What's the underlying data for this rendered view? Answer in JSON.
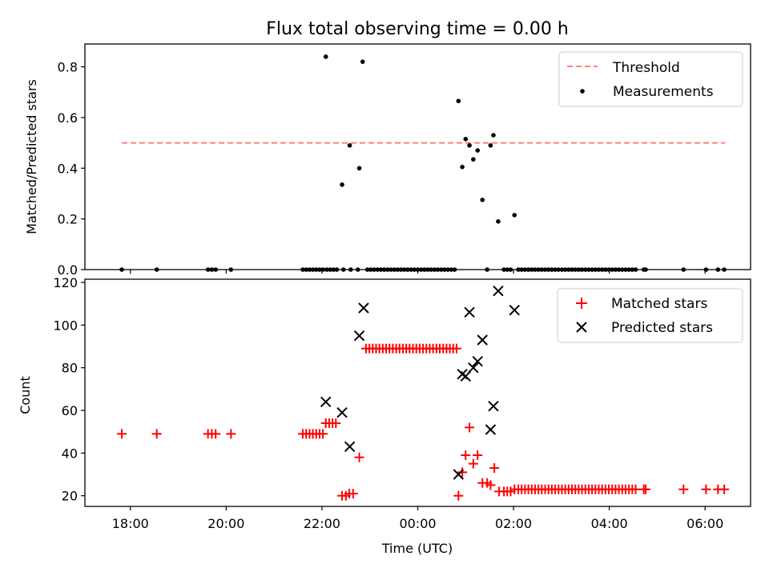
{
  "chart_data": {
    "type": "scatter",
    "title": "Flux total observing time = 0.00 h",
    "xlabel": "Time (UTC)",
    "x_unit": "hours UTC (values >= 24 are next day)",
    "xlim": [
      17.05,
      30.95
    ],
    "xticks": [
      {
        "value": 18,
        "label": "18:00"
      },
      {
        "value": 20,
        "label": "20:00"
      },
      {
        "value": 22,
        "label": "22:00"
      },
      {
        "value": 24,
        "label": "00:00"
      },
      {
        "value": 26,
        "label": "02:00"
      },
      {
        "value": 28,
        "label": "04:00"
      },
      {
        "value": 30,
        "label": "06:00"
      }
    ],
    "panels": [
      {
        "ylabel": "Matched/Predicted stars",
        "ylim": [
          0,
          0.89
        ],
        "yticks": [
          {
            "value": 0.0,
            "label": "0.0"
          },
          {
            "value": 0.2,
            "label": "0.2"
          },
          {
            "value": 0.4,
            "label": "0.4"
          },
          {
            "value": 0.6,
            "label": "0.6"
          },
          {
            "value": 0.8,
            "label": "0.8"
          }
        ],
        "legend": "top-right",
        "threshold": {
          "name": "Threshold",
          "value": 0.5,
          "x_range": [
            17.82,
            30.42
          ],
          "color": "#ff7f7f"
        },
        "series": [
          {
            "name": "Measurements",
            "marker": "dot",
            "color": "#000000",
            "points": [
              [
                17.82,
                0
              ],
              [
                18.55,
                0
              ],
              [
                19.62,
                0
              ],
              [
                19.7,
                0
              ],
              [
                19.78,
                0
              ],
              [
                20.1,
                0
              ],
              [
                21.6,
                0
              ],
              [
                21.67,
                0
              ],
              [
                21.74,
                0
              ],
              [
                21.81,
                0
              ],
              [
                21.88,
                0
              ],
              [
                21.95,
                0
              ],
              [
                22.02,
                0
              ],
              [
                22.1,
                0
              ],
              [
                22.17,
                0
              ],
              [
                22.24,
                0
              ],
              [
                22.31,
                0
              ],
              [
                22.45,
                0
              ],
              [
                22.6,
                0
              ],
              [
                22.75,
                0
              ],
              [
                22.08,
                0.84
              ],
              [
                22.42,
                0.335
              ],
              [
                22.58,
                0.49
              ],
              [
                22.78,
                0.4
              ],
              [
                22.85,
                0.82
              ],
              [
                22.95,
                0
              ],
              [
                23.02,
                0
              ],
              [
                23.09,
                0
              ],
              [
                23.16,
                0
              ],
              [
                23.23,
                0
              ],
              [
                23.3,
                0
              ],
              [
                23.37,
                0
              ],
              [
                23.44,
                0
              ],
              [
                23.51,
                0
              ],
              [
                23.58,
                0
              ],
              [
                23.65,
                0
              ],
              [
                23.72,
                0
              ],
              [
                23.79,
                0
              ],
              [
                23.86,
                0
              ],
              [
                23.93,
                0
              ],
              [
                24.0,
                0
              ],
              [
                24.07,
                0
              ],
              [
                24.14,
                0
              ],
              [
                24.21,
                0
              ],
              [
                24.28,
                0
              ],
              [
                24.35,
                0
              ],
              [
                24.42,
                0
              ],
              [
                24.49,
                0
              ],
              [
                24.56,
                0
              ],
              [
                24.63,
                0
              ],
              [
                24.7,
                0
              ],
              [
                24.77,
                0
              ],
              [
                24.85,
                0.665
              ],
              [
                24.93,
                0.405
              ],
              [
                25.0,
                0.515
              ],
              [
                25.08,
                0.49
              ],
              [
                25.16,
                0.435
              ],
              [
                25.25,
                0.47
              ],
              [
                25.35,
                0.275
              ],
              [
                25.52,
                0.49
              ],
              [
                25.58,
                0.53
              ],
              [
                25.68,
                0.19
              ],
              [
                26.02,
                0.215
              ],
              [
                25.45,
                0
              ],
              [
                25.8,
                0
              ],
              [
                25.87,
                0
              ],
              [
                25.94,
                0
              ],
              [
                26.1,
                0
              ],
              [
                26.17,
                0
              ],
              [
                26.24,
                0
              ],
              [
                26.31,
                0
              ],
              [
                26.38,
                0
              ],
              [
                26.45,
                0
              ],
              [
                26.52,
                0
              ],
              [
                26.59,
                0
              ],
              [
                26.66,
                0
              ],
              [
                26.73,
                0
              ],
              [
                26.8,
                0
              ],
              [
                26.87,
                0
              ],
              [
                26.94,
                0
              ],
              [
                27.01,
                0
              ],
              [
                27.08,
                0
              ],
              [
                27.15,
                0
              ],
              [
                27.22,
                0
              ],
              [
                27.29,
                0
              ],
              [
                27.36,
                0
              ],
              [
                27.43,
                0
              ],
              [
                27.5,
                0
              ],
              [
                27.57,
                0
              ],
              [
                27.64,
                0
              ],
              [
                27.71,
                0
              ],
              [
                27.78,
                0
              ],
              [
                27.85,
                0
              ],
              [
                27.92,
                0
              ],
              [
                27.99,
                0
              ],
              [
                28.06,
                0
              ],
              [
                28.13,
                0
              ],
              [
                28.2,
                0
              ],
              [
                28.27,
                0
              ],
              [
                28.34,
                0
              ],
              [
                28.41,
                0
              ],
              [
                28.48,
                0
              ],
              [
                28.55,
                0
              ],
              [
                28.72,
                0
              ],
              [
                28.76,
                0
              ],
              [
                29.55,
                0
              ],
              [
                30.02,
                0
              ],
              [
                30.27,
                0
              ],
              [
                30.4,
                0
              ]
            ]
          }
        ]
      },
      {
        "ylabel": "Count",
        "ylim": [
          15,
          121.5
        ],
        "yticks": [
          {
            "value": 20,
            "label": "20"
          },
          {
            "value": 40,
            "label": "40"
          },
          {
            "value": 60,
            "label": "60"
          },
          {
            "value": 80,
            "label": "80"
          },
          {
            "value": 100,
            "label": "100"
          },
          {
            "value": 120,
            "label": "120"
          }
        ],
        "legend": "top-right",
        "series": [
          {
            "name": "Matched stars",
            "marker": "plus",
            "color": "#ff0000",
            "points": [
              [
                17.82,
                49
              ],
              [
                18.55,
                49
              ],
              [
                19.62,
                49
              ],
              [
                19.7,
                49
              ],
              [
                19.78,
                49
              ],
              [
                20.1,
                49
              ],
              [
                21.6,
                49
              ],
              [
                21.67,
                49
              ],
              [
                21.74,
                49
              ],
              [
                21.81,
                49
              ],
              [
                21.88,
                49
              ],
              [
                21.95,
                49
              ],
              [
                22.02,
                49
              ],
              [
                22.08,
                54
              ],
              [
                22.15,
                54
              ],
              [
                22.22,
                54
              ],
              [
                22.29,
                54
              ],
              [
                22.42,
                20
              ],
              [
                22.5,
                20
              ],
              [
                22.57,
                21
              ],
              [
                22.65,
                21
              ],
              [
                22.78,
                38
              ],
              [
                22.92,
                89
              ],
              [
                22.99,
                89
              ],
              [
                23.06,
                89
              ],
              [
                23.13,
                89
              ],
              [
                23.2,
                89
              ],
              [
                23.27,
                89
              ],
              [
                23.34,
                89
              ],
              [
                23.41,
                89
              ],
              [
                23.48,
                89
              ],
              [
                23.55,
                89
              ],
              [
                23.62,
                89
              ],
              [
                23.69,
                89
              ],
              [
                23.76,
                89
              ],
              [
                23.83,
                89
              ],
              [
                23.9,
                89
              ],
              [
                23.97,
                89
              ],
              [
                24.04,
                89
              ],
              [
                24.11,
                89
              ],
              [
                24.18,
                89
              ],
              [
                24.25,
                89
              ],
              [
                24.32,
                89
              ],
              [
                24.39,
                89
              ],
              [
                24.46,
                89
              ],
              [
                24.53,
                89
              ],
              [
                24.6,
                89
              ],
              [
                24.67,
                89
              ],
              [
                24.74,
                89
              ],
              [
                24.81,
                89
              ],
              [
                24.85,
                20
              ],
              [
                24.93,
                31
              ],
              [
                25.0,
                39
              ],
              [
                25.08,
                52
              ],
              [
                25.16,
                35
              ],
              [
                25.25,
                39
              ],
              [
                25.35,
                26
              ],
              [
                25.45,
                26
              ],
              [
                25.52,
                25
              ],
              [
                25.6,
                33
              ],
              [
                25.7,
                22
              ],
              [
                25.8,
                22
              ],
              [
                25.87,
                22
              ],
              [
                25.94,
                22
              ],
              [
                26.02,
                23
              ],
              [
                26.1,
                23
              ],
              [
                26.17,
                23
              ],
              [
                26.24,
                23
              ],
              [
                26.31,
                23
              ],
              [
                26.38,
                23
              ],
              [
                26.45,
                23
              ],
              [
                26.52,
                23
              ],
              [
                26.59,
                23
              ],
              [
                26.66,
                23
              ],
              [
                26.73,
                23
              ],
              [
                26.8,
                23
              ],
              [
                26.87,
                23
              ],
              [
                26.94,
                23
              ],
              [
                27.01,
                23
              ],
              [
                27.08,
                23
              ],
              [
                27.15,
                23
              ],
              [
                27.22,
                23
              ],
              [
                27.29,
                23
              ],
              [
                27.36,
                23
              ],
              [
                27.43,
                23
              ],
              [
                27.5,
                23
              ],
              [
                27.57,
                23
              ],
              [
                27.64,
                23
              ],
              [
                27.71,
                23
              ],
              [
                27.78,
                23
              ],
              [
                27.85,
                23
              ],
              [
                27.92,
                23
              ],
              [
                27.99,
                23
              ],
              [
                28.06,
                23
              ],
              [
                28.13,
                23
              ],
              [
                28.2,
                23
              ],
              [
                28.27,
                23
              ],
              [
                28.34,
                23
              ],
              [
                28.41,
                23
              ],
              [
                28.48,
                23
              ],
              [
                28.55,
                23
              ],
              [
                28.72,
                23
              ],
              [
                28.76,
                23
              ],
              [
                29.55,
                23
              ],
              [
                30.02,
                23
              ],
              [
                30.27,
                23
              ],
              [
                30.4,
                23
              ]
            ]
          },
          {
            "name": "Predicted stars",
            "marker": "x",
            "color": "#000000",
            "points": [
              [
                22.08,
                64
              ],
              [
                22.42,
                59
              ],
              [
                22.58,
                43
              ],
              [
                22.78,
                95
              ],
              [
                22.87,
                108
              ],
              [
                24.85,
                30
              ],
              [
                24.93,
                77
              ],
              [
                25.0,
                76
              ],
              [
                25.08,
                106
              ],
              [
                25.16,
                80
              ],
              [
                25.25,
                83
              ],
              [
                25.35,
                93
              ],
              [
                25.52,
                51
              ],
              [
                25.58,
                62
              ],
              [
                25.68,
                116
              ],
              [
                26.02,
                107
              ]
            ]
          }
        ]
      }
    ]
  }
}
